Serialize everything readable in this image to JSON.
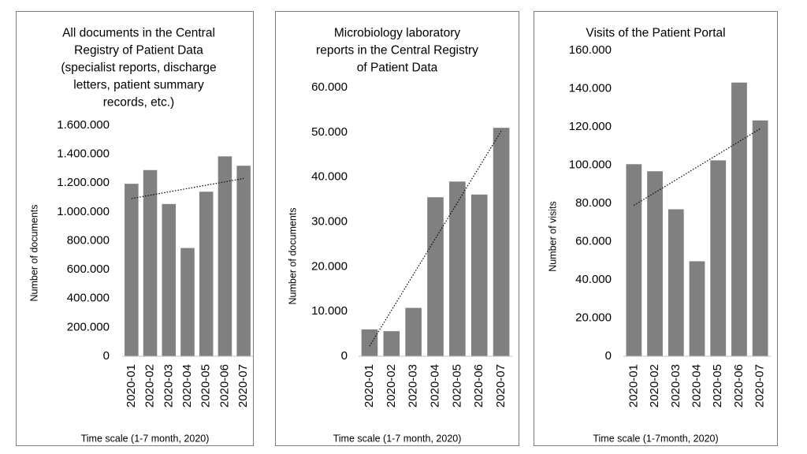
{
  "chart_data": [
    {
      "type": "bar",
      "title_lines": [
        "All documents in the Central",
        "Registry of Patient Data",
        "(specialist reports, discharge",
        "letters, patient summary",
        "records, etc.)"
      ],
      "ylabel": "Number of documents",
      "xlabel": "Time scale (1-7 month, 2020)",
      "categories": [
        "2020-01",
        "2020-02",
        "2020-03",
        "2020-04",
        "2020-05",
        "2020-06",
        "2020-07"
      ],
      "values": [
        1195000,
        1290000,
        1055000,
        750000,
        1140000,
        1385000,
        1320000
      ],
      "ylim": [
        0,
        1600000
      ],
      "yticks": [
        "0",
        "200.000",
        "400.000",
        "600.000",
        "800.000",
        "1.000.000",
        "1.200.000",
        "1.400.000",
        "1.600.000"
      ],
      "trendline": "linear",
      "grid": false,
      "bar_color": "#808080"
    },
    {
      "type": "bar",
      "title_lines": [
        "Microbiology laboratory",
        "reports in the Central Registry",
        "of Patient Data"
      ],
      "ylabel": "Number of documents",
      "xlabel": "Time scale (1-7 month, 2020)",
      "categories": [
        "2020-01",
        "2020-02",
        "2020-03",
        "2020-04",
        "2020-05",
        "2020-06",
        "2020-07"
      ],
      "values": [
        6000,
        5600,
        10800,
        35500,
        39000,
        36100,
        51000
      ],
      "ylim": [
        0,
        60000
      ],
      "yticks": [
        "0",
        "10.000",
        "20.000",
        "30.000",
        "40.000",
        "50.000",
        "60.000"
      ],
      "trendline": "linear",
      "grid": false,
      "bar_color": "#808080"
    },
    {
      "type": "bar",
      "title_lines": [
        "Visits of the Patient Portal"
      ],
      "ylabel": "Number of visits",
      "xlabel": "Time scale (1-7month, 2020)",
      "categories": [
        "2020-01",
        "2020-02",
        "2020-03",
        "2020-04",
        "2020-05",
        "2020-06",
        "2020-07"
      ],
      "values": [
        100500,
        96800,
        76900,
        49700,
        102500,
        143200,
        123400
      ],
      "ylim": [
        0,
        160000
      ],
      "yticks": [
        "0",
        "20.000",
        "40.000",
        "60.000",
        "80.000",
        "100.000",
        "120.000",
        "140.000",
        "160.000"
      ],
      "trendline": "linear",
      "grid": false,
      "bar_color": "#808080"
    }
  ]
}
